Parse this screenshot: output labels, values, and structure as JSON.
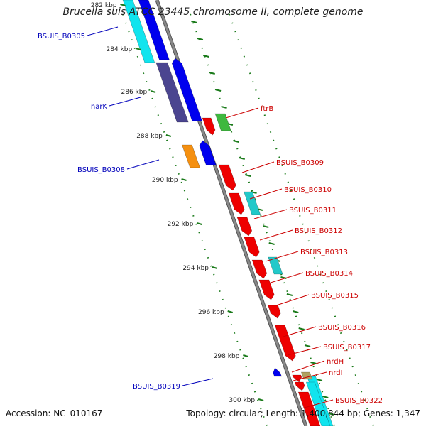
{
  "title": "Brucella suis ATCC 23445 chromosome II, complete genome",
  "accession_text": "Accession: NC_010167",
  "summary_text": "Topology: circular; Length: 1,400,844 bp; Genes: 1,347",
  "kbp_ticks": [
    "282 kbp",
    "284 kbp",
    "286 kbp",
    "288 kbp",
    "290 kbp",
    "292 kbp",
    "294 kbp",
    "296 kbp",
    "298 kbp",
    "300 kbp"
  ],
  "left_labels": [
    "BSUIS_B0305",
    "narK",
    "BSUIS_B0308",
    "BSUIS_B0319"
  ],
  "right_labels": [
    "ftrB",
    "BSUIS_B0309",
    "BSUIS_B0310",
    "BSUIS_B0311",
    "BSUIS_B0312",
    "BSUIS_B0313",
    "BSUIS_B0314",
    "BSUIS_B0315",
    "BSUIS_B0316",
    "BSUIS_B0317",
    "nrdH",
    "nrdI",
    "BSUIS_B0322"
  ],
  "colors": {
    "backbone": "#888888",
    "forward_cds": "#0000ee",
    "forward_light": "#11e4ee",
    "reverse_cds": "#ee0000",
    "label_left": "#0000bb",
    "label_right": "#cc0000",
    "tick": "#1a7a1a",
    "tick_label": "#222222",
    "dark_feature": "#4b4590",
    "orange_feature": "#f59010",
    "green_feature": "#3fb83f",
    "teal_feature": "#22c9c9",
    "olive_feature": "#b0a060"
  }
}
